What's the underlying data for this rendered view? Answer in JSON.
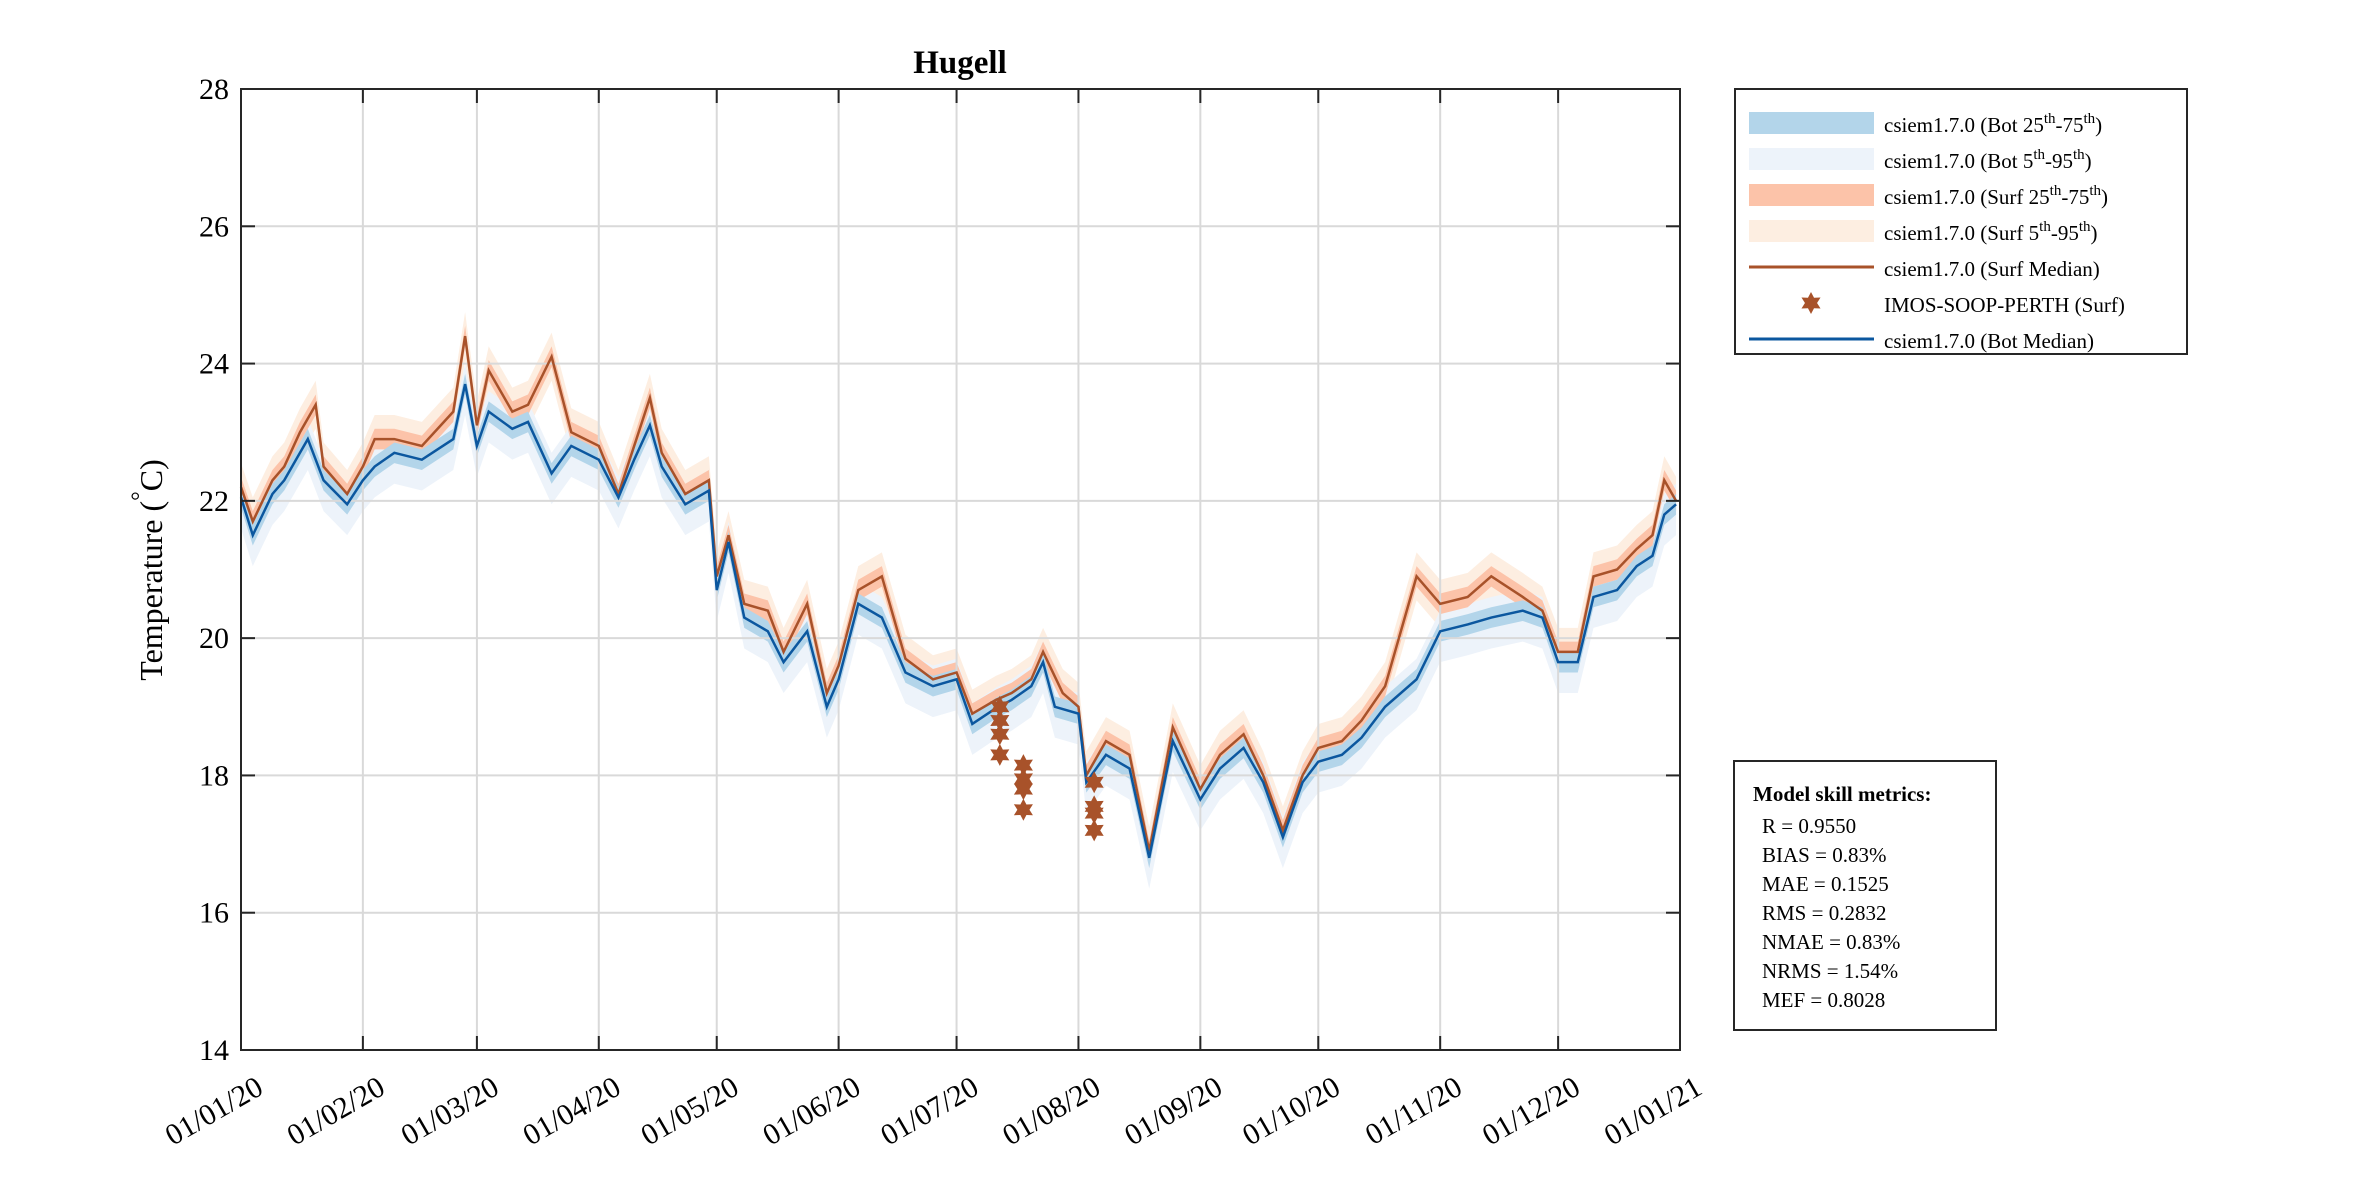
{
  "chart_data": {
    "type": "line",
    "title": "Hugell",
    "ylabel": "Temperature (°C)",
    "ylabel_parts": {
      "text": "Temperature (",
      "degree": "°",
      "unit": "C)"
    },
    "ylim": [
      14,
      28
    ],
    "yticks": [
      14,
      16,
      18,
      20,
      22,
      24,
      26,
      28
    ],
    "xlim": [
      "2020-01-01",
      "2021-01-01"
    ],
    "xticks": [
      "2020-01-01",
      "2020-02-01",
      "2020-03-01",
      "2020-04-01",
      "2020-05-01",
      "2020-06-01",
      "2020-07-01",
      "2020-08-01",
      "2020-09-01",
      "2020-10-01",
      "2020-11-01",
      "2020-12-01",
      "2021-01-01"
    ],
    "xtick_labels": [
      "01/01/20",
      "01/02/20",
      "01/03/20",
      "01/04/20",
      "01/05/20",
      "01/06/20",
      "01/07/20",
      "01/08/20",
      "01/09/20",
      "01/10/20",
      "01/11/20",
      "01/12/20",
      "01/01/21"
    ],
    "grid": true,
    "legend_placement": "outside-top-right",
    "colors": {
      "bot_iqr": "#b3d5ea",
      "bot_p5_95": "#edf3fa",
      "surf_iqr": "#fcc3a9",
      "surf_p5_95": "#fdeee1",
      "surf_median": "#a8522a",
      "obs": "#a8522a",
      "bot_median": "#0b579f"
    },
    "legend": [
      {
        "kind": "patch",
        "color_key": "bot_iqr",
        "label": "csiem1.7.0 (Bot ",
        "a": "25",
        "b": "-75",
        "sup": "th"
      },
      {
        "kind": "patch",
        "color_key": "bot_p5_95",
        "label": "csiem1.7.0 (Bot ",
        "a": "5",
        "b": "-95",
        "sup": "th"
      },
      {
        "kind": "patch",
        "color_key": "surf_iqr",
        "label": "csiem1.7.0 (Surf ",
        "a": "25",
        "b": "-75",
        "sup": "th"
      },
      {
        "kind": "patch",
        "color_key": "surf_p5_95",
        "label": "csiem1.7.0 (Surf ",
        "a": "5",
        "b": "-95",
        "sup": "th"
      },
      {
        "kind": "line",
        "color_key": "surf_median",
        "label": "csiem1.7.0 (Surf Median)"
      },
      {
        "kind": "star",
        "color_key": "obs",
        "label": "IMOS-SOOP-PERTH (Surf)"
      },
      {
        "kind": "line",
        "color_key": "bot_median",
        "label": "csiem1.7.0 (Bot Median)"
      }
    ],
    "series": [
      {
        "name": "csiem1.7.0 (Bot Median)",
        "x": [
          "2020-01-01",
          "2020-01-04",
          "2020-01-09",
          "2020-01-12",
          "2020-01-16",
          "2020-01-18",
          "2020-01-22",
          "2020-01-28",
          "2020-02-01",
          "2020-02-04",
          "2020-02-09",
          "2020-02-16",
          "2020-02-24",
          "2020-02-27",
          "2020-03-01",
          "2020-03-04",
          "2020-03-10",
          "2020-03-14",
          "2020-03-20",
          "2020-03-25",
          "2020-04-01",
          "2020-04-06",
          "2020-04-10",
          "2020-04-14",
          "2020-04-17",
          "2020-04-23",
          "2020-04-29",
          "2020-05-01",
          "2020-05-04",
          "2020-05-08",
          "2020-05-14",
          "2020-05-18",
          "2020-05-24",
          "2020-05-29",
          "2020-06-01",
          "2020-06-06",
          "2020-06-12",
          "2020-06-18",
          "2020-06-25",
          "2020-07-01",
          "2020-07-05",
          "2020-07-11",
          "2020-07-15",
          "2020-07-20",
          "2020-07-23",
          "2020-07-26",
          "2020-08-01",
          "2020-08-03",
          "2020-08-08",
          "2020-08-14",
          "2020-08-19",
          "2020-08-25",
          "2020-09-01",
          "2020-09-06",
          "2020-09-12",
          "2020-09-17",
          "2020-09-22",
          "2020-09-27",
          "2020-10-01",
          "2020-10-07",
          "2020-10-12",
          "2020-10-18",
          "2020-10-26",
          "2020-11-01",
          "2020-11-08",
          "2020-11-14",
          "2020-11-22",
          "2020-11-27",
          "2020-12-01",
          "2020-12-06",
          "2020-12-10",
          "2020-12-16",
          "2020-12-21",
          "2020-12-25",
          "2020-12-28",
          "2020-12-31"
        ],
        "y": [
          22.05,
          21.5,
          22.1,
          22.3,
          22.7,
          22.9,
          22.3,
          21.95,
          22.3,
          22.5,
          22.7,
          22.6,
          22.9,
          23.7,
          22.8,
          23.3,
          23.05,
          23.15,
          22.4,
          22.8,
          22.6,
          22.05,
          22.6,
          23.1,
          22.5,
          21.95,
          22.15,
          20.7,
          21.4,
          20.3,
          20.1,
          19.65,
          20.1,
          19.0,
          19.4,
          20.5,
          20.3,
          19.5,
          19.3,
          19.4,
          18.75,
          18.98,
          19.1,
          19.3,
          19.65,
          19.0,
          18.9,
          17.9,
          18.3,
          18.1,
          16.8,
          18.5,
          17.65,
          18.1,
          18.4,
          17.9,
          17.1,
          17.9,
          18.2,
          18.3,
          18.55,
          19.0,
          19.4,
          20.1,
          20.2,
          20.3,
          20.4,
          20.3,
          19.65,
          19.65,
          20.6,
          20.7,
          21.05,
          21.2,
          21.8,
          21.95
        ]
      },
      {
        "name": "csiem1.7.0 (Surf Median)",
        "x": [
          "2020-01-01",
          "2020-01-04",
          "2020-01-09",
          "2020-01-12",
          "2020-01-16",
          "2020-01-20",
          "2020-01-22",
          "2020-01-28",
          "2020-02-01",
          "2020-02-04",
          "2020-02-09",
          "2020-02-16",
          "2020-02-24",
          "2020-02-27",
          "2020-03-01",
          "2020-03-04",
          "2020-03-10",
          "2020-03-14",
          "2020-03-20",
          "2020-03-25",
          "2020-04-01",
          "2020-04-06",
          "2020-04-10",
          "2020-04-14",
          "2020-04-17",
          "2020-04-23",
          "2020-04-29",
          "2020-05-01",
          "2020-05-04",
          "2020-05-08",
          "2020-05-14",
          "2020-05-18",
          "2020-05-24",
          "2020-05-29",
          "2020-06-01",
          "2020-06-06",
          "2020-06-12",
          "2020-06-18",
          "2020-06-25",
          "2020-07-01",
          "2020-07-05",
          "2020-07-11",
          "2020-07-15",
          "2020-07-20",
          "2020-07-23",
          "2020-07-28",
          "2020-08-01",
          "2020-08-03",
          "2020-08-08",
          "2020-08-14",
          "2020-08-19",
          "2020-08-25",
          "2020-09-01",
          "2020-09-06",
          "2020-09-12",
          "2020-09-17",
          "2020-09-22",
          "2020-09-27",
          "2020-10-01",
          "2020-10-07",
          "2020-10-12",
          "2020-10-18",
          "2020-10-26",
          "2020-11-01",
          "2020-11-08",
          "2020-11-14",
          "2020-11-22",
          "2020-11-27",
          "2020-12-01",
          "2020-12-06",
          "2020-12-10",
          "2020-12-16",
          "2020-12-21",
          "2020-12-25",
          "2020-12-28",
          "2020-12-31"
        ],
        "y": [
          22.2,
          21.7,
          22.3,
          22.5,
          23.0,
          23.4,
          22.5,
          22.1,
          22.5,
          22.9,
          22.9,
          22.8,
          23.3,
          24.4,
          23.1,
          23.9,
          23.3,
          23.4,
          24.1,
          23.0,
          22.8,
          22.1,
          22.8,
          23.5,
          22.7,
          22.1,
          22.3,
          20.9,
          21.5,
          20.5,
          20.4,
          19.8,
          20.5,
          19.2,
          19.6,
          20.7,
          20.9,
          19.7,
          19.4,
          19.5,
          18.9,
          19.1,
          19.2,
          19.4,
          19.8,
          19.2,
          19.0,
          18.0,
          18.5,
          18.3,
          16.9,
          18.7,
          17.8,
          18.3,
          18.6,
          18.0,
          17.2,
          18.0,
          18.4,
          18.5,
          18.8,
          19.3,
          20.9,
          20.5,
          20.6,
          20.9,
          20.6,
          20.4,
          19.8,
          19.8,
          20.9,
          21.0,
          21.3,
          21.5,
          22.3,
          22.0
        ]
      },
      {
        "name": "IMOS-SOOP-PERTH (Surf)",
        "x": [
          "2020-07-12",
          "2020-07-12",
          "2020-07-12",
          "2020-07-12",
          "2020-07-18",
          "2020-07-18",
          "2020-07-18",
          "2020-07-18",
          "2020-08-05",
          "2020-08-05",
          "2020-08-05",
          "2020-08-05"
        ],
        "y": [
          19.0,
          18.8,
          18.6,
          18.3,
          18.15,
          17.95,
          17.8,
          17.5,
          17.9,
          17.55,
          17.45,
          17.2
        ]
      }
    ]
  },
  "metrics": {
    "title": "Model skill metrics:",
    "lines": [
      "R    = 0.9550",
      "BIAS = 0.83%",
      "MAE  = 0.1525",
      "RMS  = 0.2832",
      "NMAE = 0.83%",
      "NRMS = 1.54%",
      "MEF  = 0.8028"
    ]
  }
}
